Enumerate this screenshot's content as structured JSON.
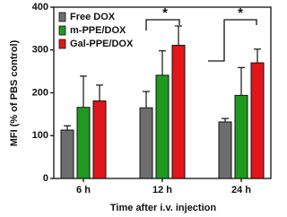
{
  "chart_data": {
    "type": "bar",
    "y_label": "MFI (% of PBS control)",
    "x_label": "Time after i.v. injection",
    "categories": [
      "6 h",
      "12 h",
      "24 h"
    ],
    "series": [
      {
        "name": "Free DOX",
        "color": "#6d6d6d",
        "values": [
          113,
          165,
          132
        ],
        "errors": [
          10,
          38,
          8
        ]
      },
      {
        "name": "m-PPE/DOX",
        "color": "#1f9a1f",
        "values": [
          166,
          241,
          194
        ],
        "errors": [
          73,
          57,
          65
        ]
      },
      {
        "name": "Gal-PPE/DOX",
        "color": "#e0161b",
        "values": [
          181,
          311,
          270
        ],
        "errors": [
          37,
          45,
          32
        ]
      }
    ],
    "ylim": [
      0,
      400
    ],
    "yticks": [
      0,
      100,
      200,
      300,
      400
    ],
    "annotations": [
      "*",
      "*"
    ],
    "legend": "upper left"
  }
}
